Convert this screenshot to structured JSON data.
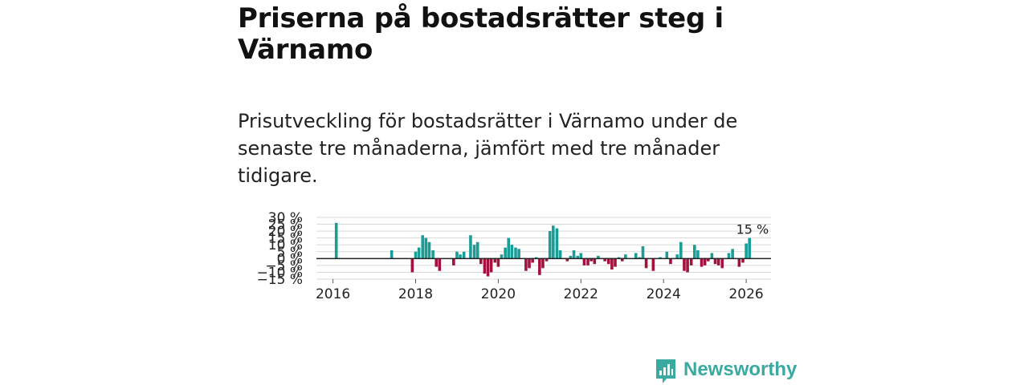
{
  "page": {
    "title": "Priserna på bostadsrätter steg i Värnamo",
    "subtitle": "Prisutveckling för bostadsrätter i Värnamo under de senaste tre månaderna, jämfört med tre månader tidigare."
  },
  "brand": {
    "name": "Newsworthy",
    "color": "#3aa9a2"
  },
  "colors": {
    "positive": "#1a9d97",
    "negative": "#a3123f",
    "grid": "#d9d9d9",
    "zero_line": "#222222",
    "text": "#222222"
  },
  "chart_data": {
    "type": "bar",
    "title": "Priserna på bostadsrätter steg i Värnamo",
    "xlabel": "",
    "ylabel": "",
    "ylim": [
      -15,
      30
    ],
    "yticks": [
      -15,
      -10,
      -5,
      0,
      5,
      10,
      15,
      20,
      25,
      30
    ],
    "ytick_labels": [
      "−15 %",
      "−10 %",
      "−5 %",
      "0 %",
      "5 %",
      "10 %",
      "15 %",
      "20 %",
      "25 %",
      "30 %"
    ],
    "xticks": [
      2016,
      2018,
      2020,
      2022,
      2024,
      2026
    ],
    "xtick_labels": [
      "2016",
      "2018",
      "2020",
      "2022",
      "2024",
      "2026"
    ],
    "x_range": [
      2015.6,
      2026.6
    ],
    "last_value_label": "15 %",
    "series": [
      {
        "name": "Prisutveckling",
        "points": [
          {
            "x": 2016.08,
            "y": 26
          },
          {
            "x": 2017.42,
            "y": 6
          },
          {
            "x": 2017.92,
            "y": -10
          },
          {
            "x": 2018.0,
            "y": 5
          },
          {
            "x": 2018.08,
            "y": 8
          },
          {
            "x": 2018.17,
            "y": 17
          },
          {
            "x": 2018.25,
            "y": 15
          },
          {
            "x": 2018.33,
            "y": 12
          },
          {
            "x": 2018.42,
            "y": 6
          },
          {
            "x": 2018.5,
            "y": -6
          },
          {
            "x": 2018.58,
            "y": -9
          },
          {
            "x": 2018.92,
            "y": -5
          },
          {
            "x": 2019.0,
            "y": 5
          },
          {
            "x": 2019.08,
            "y": 3
          },
          {
            "x": 2019.17,
            "y": 5
          },
          {
            "x": 2019.33,
            "y": 17
          },
          {
            "x": 2019.42,
            "y": 10
          },
          {
            "x": 2019.5,
            "y": 12
          },
          {
            "x": 2019.58,
            "y": -4
          },
          {
            "x": 2019.67,
            "y": -11
          },
          {
            "x": 2019.75,
            "y": -13
          },
          {
            "x": 2019.83,
            "y": -10
          },
          {
            "x": 2019.92,
            "y": -3
          },
          {
            "x": 2020.0,
            "y": -6
          },
          {
            "x": 2020.08,
            "y": 3
          },
          {
            "x": 2020.17,
            "y": 8
          },
          {
            "x": 2020.25,
            "y": 15
          },
          {
            "x": 2020.33,
            "y": 10
          },
          {
            "x": 2020.42,
            "y": 8
          },
          {
            "x": 2020.5,
            "y": 7
          },
          {
            "x": 2020.67,
            "y": -9
          },
          {
            "x": 2020.75,
            "y": -7
          },
          {
            "x": 2020.83,
            "y": -3
          },
          {
            "x": 2020.92,
            "y": 1
          },
          {
            "x": 2021.0,
            "y": -12
          },
          {
            "x": 2021.08,
            "y": -7
          },
          {
            "x": 2021.17,
            "y": -2
          },
          {
            "x": 2021.25,
            "y": 20
          },
          {
            "x": 2021.33,
            "y": 24
          },
          {
            "x": 2021.42,
            "y": 22
          },
          {
            "x": 2021.5,
            "y": 6
          },
          {
            "x": 2021.67,
            "y": -2
          },
          {
            "x": 2021.75,
            "y": 2
          },
          {
            "x": 2021.83,
            "y": 6
          },
          {
            "x": 2021.92,
            "y": 2
          },
          {
            "x": 2022.0,
            "y": 4
          },
          {
            "x": 2022.08,
            "y": -5
          },
          {
            "x": 2022.17,
            "y": -5
          },
          {
            "x": 2022.25,
            "y": -2
          },
          {
            "x": 2022.33,
            "y": -4
          },
          {
            "x": 2022.42,
            "y": 2
          },
          {
            "x": 2022.58,
            "y": -2
          },
          {
            "x": 2022.67,
            "y": -4
          },
          {
            "x": 2022.75,
            "y": -8
          },
          {
            "x": 2022.83,
            "y": -6
          },
          {
            "x": 2022.92,
            "y": 1
          },
          {
            "x": 2023.0,
            "y": -2
          },
          {
            "x": 2023.08,
            "y": 3
          },
          {
            "x": 2023.33,
            "y": 4
          },
          {
            "x": 2023.42,
            "y": 1
          },
          {
            "x": 2023.5,
            "y": 9
          },
          {
            "x": 2023.58,
            "y": -7
          },
          {
            "x": 2023.75,
            "y": -9
          },
          {
            "x": 2023.92,
            "y": 1
          },
          {
            "x": 2024.08,
            "y": 5
          },
          {
            "x": 2024.17,
            "y": -4
          },
          {
            "x": 2024.33,
            "y": 3
          },
          {
            "x": 2024.42,
            "y": 12
          },
          {
            "x": 2024.5,
            "y": -9
          },
          {
            "x": 2024.58,
            "y": -10
          },
          {
            "x": 2024.67,
            "y": -5
          },
          {
            "x": 2024.75,
            "y": 10
          },
          {
            "x": 2024.83,
            "y": 6
          },
          {
            "x": 2024.92,
            "y": -6
          },
          {
            "x": 2025.0,
            "y": -5
          },
          {
            "x": 2025.08,
            "y": -2
          },
          {
            "x": 2025.17,
            "y": 4
          },
          {
            "x": 2025.25,
            "y": -4
          },
          {
            "x": 2025.33,
            "y": -5
          },
          {
            "x": 2025.42,
            "y": -7
          },
          {
            "x": 2025.58,
            "y": 4
          },
          {
            "x": 2025.67,
            "y": 7
          },
          {
            "x": 2025.83,
            "y": -6
          },
          {
            "x": 2025.92,
            "y": -3
          },
          {
            "x": 2026.0,
            "y": 11
          },
          {
            "x": 2026.08,
            "y": 15
          }
        ]
      }
    ]
  }
}
